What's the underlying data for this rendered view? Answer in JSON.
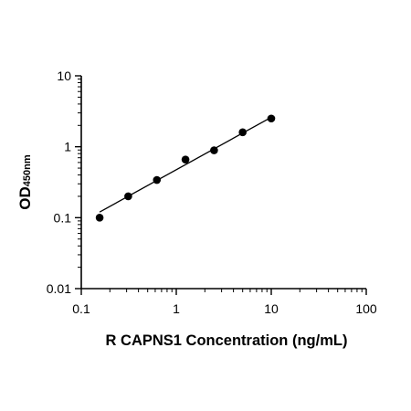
{
  "chart_data": {
    "type": "scatter",
    "xlabel": "R CAPNS1 Concentration (ng/mL)",
    "ylabel": {
      "main": "OD",
      "subscript": "450nm"
    },
    "x_scale": "log",
    "y_scale": "log",
    "xlim": [
      0.1,
      100
    ],
    "ylim": [
      0.01,
      10
    ],
    "x_ticks": [
      0.1,
      1,
      10,
      100
    ],
    "y_ticks": [
      0.01,
      0.1,
      1,
      10
    ],
    "x_tick_labels": [
      "0.1",
      "1",
      "10",
      "100"
    ],
    "y_tick_labels": [
      "0.01",
      "0.1",
      "1",
      "10"
    ],
    "grid": false,
    "legend": "none",
    "series": [
      {
        "x": [
          0.156,
          0.312,
          0.625,
          1.25,
          2.5,
          5,
          10
        ],
        "y": [
          0.1,
          0.2,
          0.34,
          0.66,
          0.89,
          1.6,
          2.5
        ]
      }
    ],
    "fit_line": {
      "x": [
        0.156,
        10
      ],
      "y": [
        0.12,
        2.6
      ]
    },
    "colors": {
      "marker": "#000000",
      "line": "#000000",
      "axis": "#000000"
    }
  }
}
